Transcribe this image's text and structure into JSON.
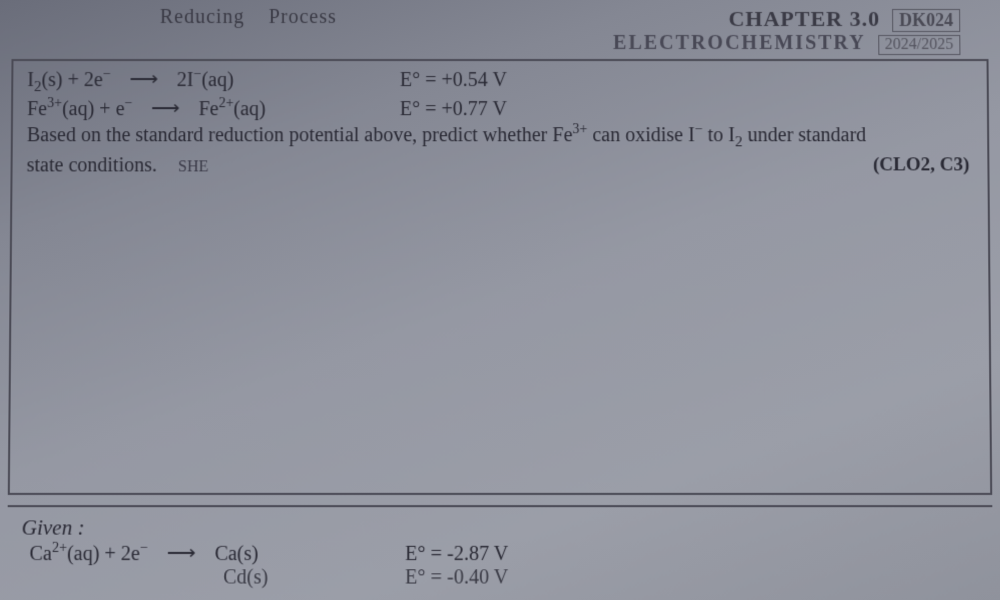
{
  "header": {
    "handwritten_left": "Reducing",
    "handwritten_right": "Process",
    "chapter_label": "CHAPTER 3.0",
    "code": "DK024",
    "subject": "ELECTROCHEMISTRY",
    "year": "2024/2025"
  },
  "equations": [
    {
      "lhs_html": "I<sub>2</sub>(s) + 2e<sup>&minus;</sup>",
      "rhs_html": "2I<sup>&minus;</sup>(aq)",
      "e_label": "E°",
      "e_value": "= +0.54 V"
    },
    {
      "lhs_html": "Fe<sup>3+</sup>(aq) + e<sup>&minus;</sup>",
      "rhs_html": "Fe<sup>2+</sup>(aq)",
      "e_label": "E°",
      "e_value": "= +0.77 V"
    }
  ],
  "question": {
    "line1": "Based on the standard reduction potential above, predict whether Fe<sup>3+</sup> can oxidise I<sup>&minus;</sup> to I<sub>2</sub> under standard",
    "line2_left": "state conditions.",
    "she": "SHE",
    "clo": "(CLO2, C3)"
  },
  "given": {
    "label": "Given :",
    "eq": {
      "lhs_html": "Ca<sup>2+</sup>(aq) + 2e<sup>&minus;</sup>",
      "rhs_html": "Ca(s)",
      "e_label": "E°",
      "e_value": "= -2.87 V"
    },
    "eq2": {
      "rhs_html": "Cd(s)",
      "e_label": "E°",
      "e_value": "= -0.40 V"
    }
  },
  "style": {
    "text_color": "#2a2a35",
    "border_color": "#4a4a55",
    "handwritten_color": "#3a3a45",
    "arrow_glyph": "⟶"
  }
}
